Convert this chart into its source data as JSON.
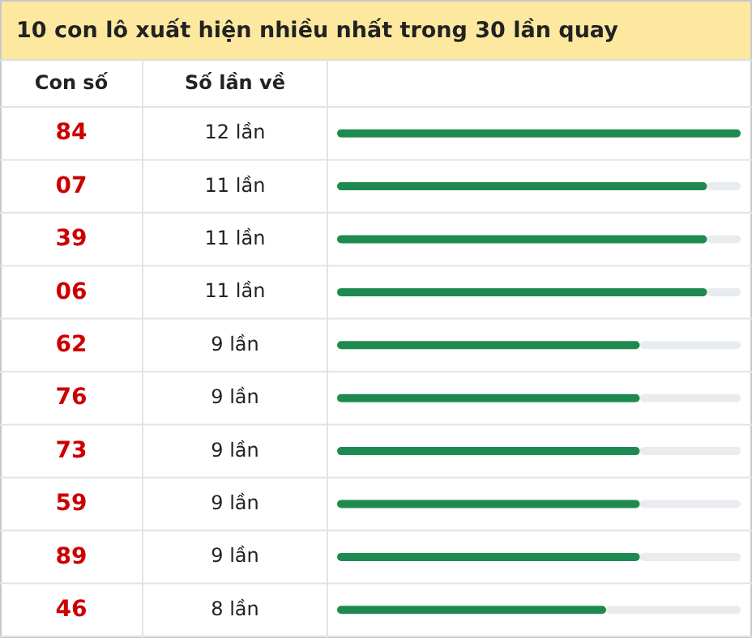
{
  "chart_data": {
    "type": "bar",
    "orientation": "horizontal",
    "title": "10 con lô xuất hiện nhiều nhất trong 30 lần quay",
    "ylabel": "Con số",
    "xlabel": "Số lần về",
    "categories": [
      "84",
      "07",
      "39",
      "06",
      "62",
      "76",
      "73",
      "59",
      "89",
      "46"
    ],
    "values": [
      12,
      11,
      11,
      11,
      9,
      9,
      9,
      9,
      9,
      8
    ],
    "value_labels": [
      "12 lần",
      "11 lần",
      "11 lần",
      "11 lần",
      "9 lần",
      "9 lần",
      "9 lần",
      "9 lần",
      "9 lần",
      "8 lần"
    ],
    "color": "#1f8a50",
    "xlim": [
      0,
      12
    ]
  }
}
